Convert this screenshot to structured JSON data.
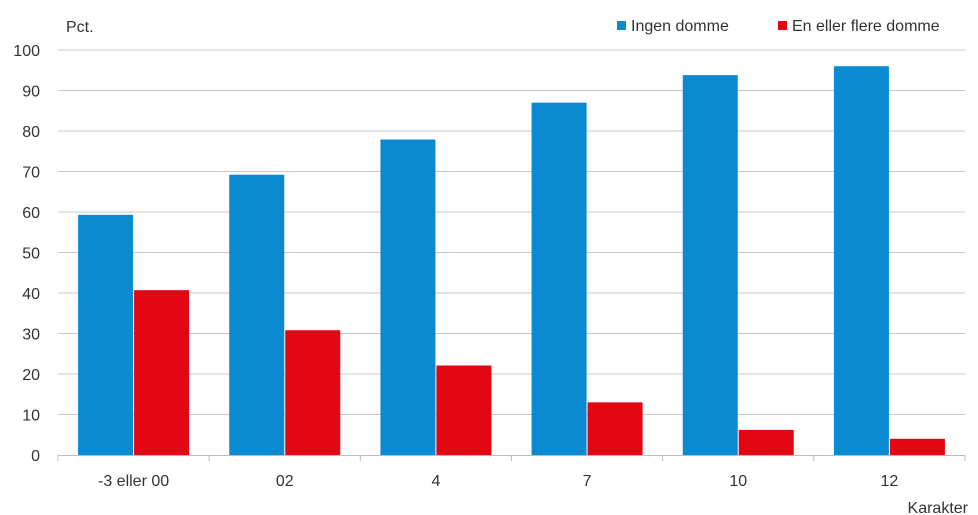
{
  "chart_data": {
    "type": "bar",
    "ylabel": "Pct.",
    "xlabel": "Karakter",
    "ylim": [
      0,
      100
    ],
    "yticks": [
      0,
      10,
      20,
      30,
      40,
      50,
      60,
      70,
      80,
      90,
      100
    ],
    "grid": "horizontal",
    "legend_position": "top-right",
    "categories": [
      "-3 eller 00",
      "02",
      "4",
      "7",
      "10",
      "12"
    ],
    "series": [
      {
        "name": "Ingen domme",
        "color": "#0a8ad1",
        "values": [
          59.3,
          69.2,
          77.9,
          87.0,
          93.8,
          96.0
        ]
      },
      {
        "name": "En eller flere domme",
        "color": "#e30613",
        "values": [
          40.7,
          30.8,
          22.1,
          13.0,
          6.2,
          4.0
        ]
      }
    ]
  }
}
